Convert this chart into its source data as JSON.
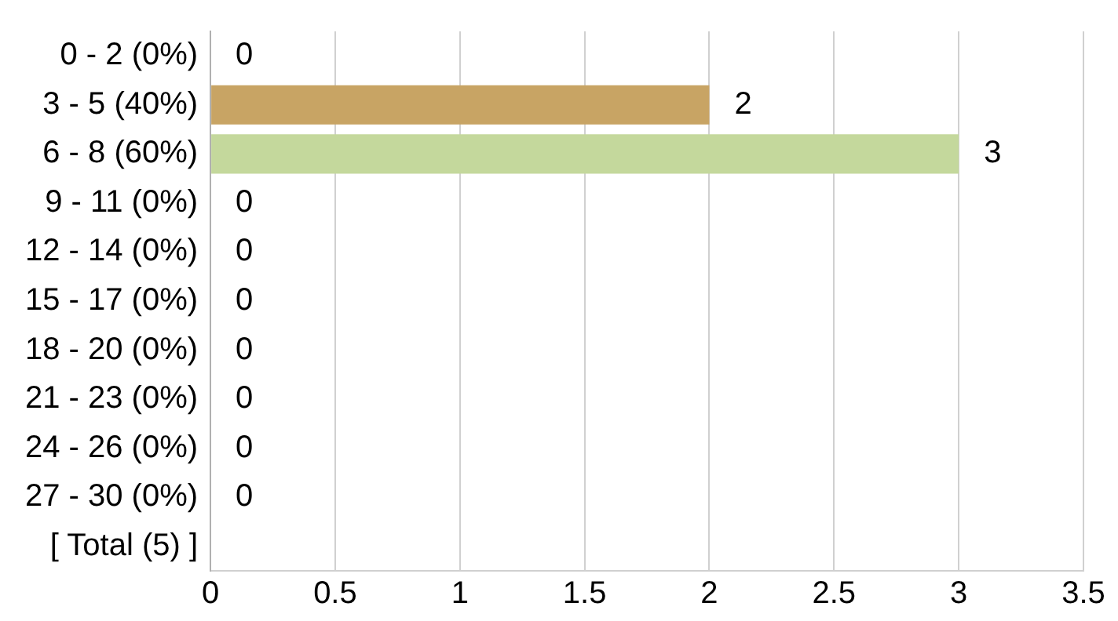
{
  "chart_data": {
    "type": "bar",
    "orientation": "horizontal",
    "categories": [
      "0 - 2 (0%)",
      "3 - 5 (40%)",
      "6 - 8 (60%)",
      "9 - 11 (0%)",
      "12 - 14 (0%)",
      "15 - 17 (0%)",
      "18 - 20 (0%)",
      "21 - 23 (0%)",
      "24 - 26 (0%)",
      "27 - 30 (0%)",
      "[ Total (5) ]"
    ],
    "values": [
      0,
      2,
      3,
      0,
      0,
      0,
      0,
      0,
      0,
      0,
      null
    ],
    "colors": [
      "#c8a464",
      "#c8a464",
      "#c4d89c",
      "#c8a464",
      "#c8a464",
      "#c8a464",
      "#c8a464",
      "#c8a464",
      "#c8a464",
      "#c8a464",
      "#c8a464"
    ],
    "xlim": [
      0,
      3.5
    ],
    "xticks": [
      0,
      0.5,
      1,
      1.5,
      2,
      2.5,
      3,
      3.5
    ],
    "grid": "x",
    "data_labels": true,
    "legend": false
  }
}
